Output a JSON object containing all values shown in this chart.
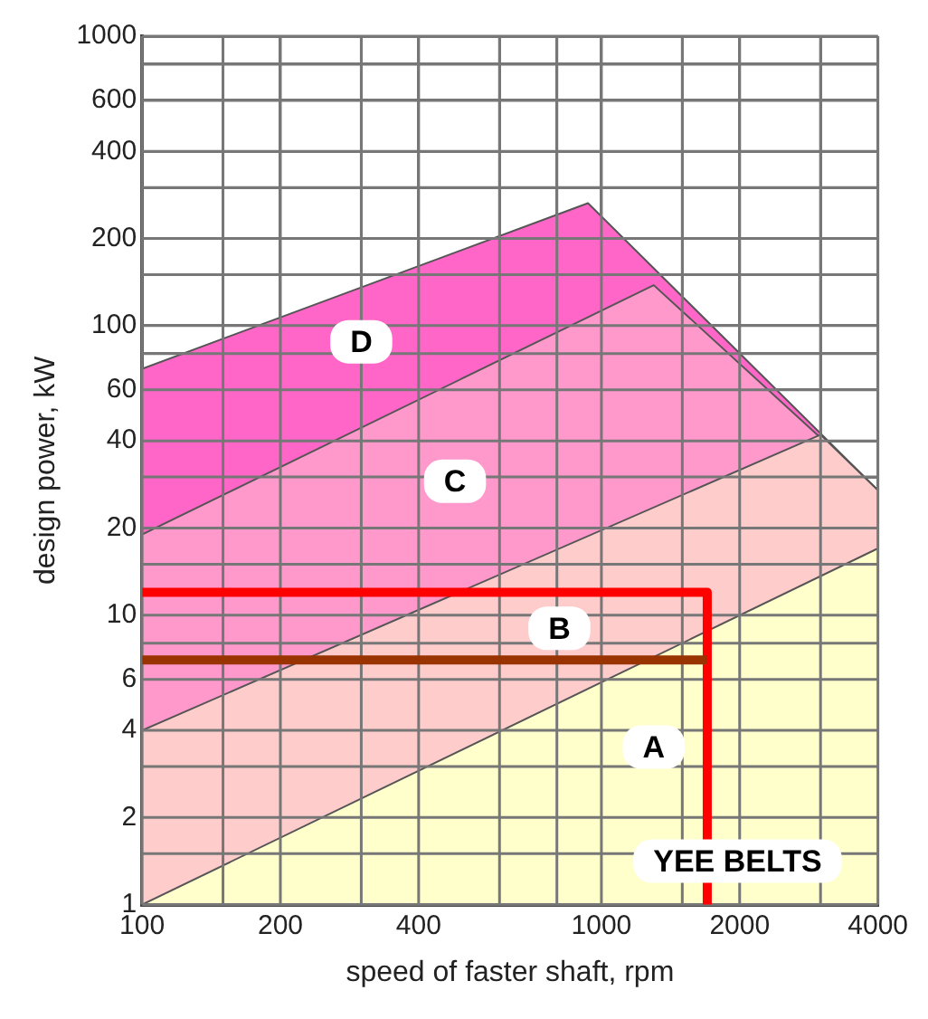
{
  "chart_data": {
    "type": "area",
    "xlabel": "speed of faster shaft, rpm",
    "ylabel": "design power, kW",
    "log": "xy",
    "grid": true,
    "legend": false,
    "marker": "none",
    "xlim": [
      100,
      4000
    ],
    "ylim": [
      1,
      1000
    ],
    "xticks": [
      100,
      {
        "value": 150,
        "label": null
      },
      200,
      {
        "value": 300,
        "label": null
      },
      400,
      {
        "value": 600,
        "label": null
      },
      {
        "value": 800,
        "label": null
      },
      1000,
      {
        "value": 1500,
        "label": null
      },
      2000,
      {
        "value": 3000,
        "label": null
      },
      4000
    ],
    "yticks": [
      1,
      {
        "value": 1.5,
        "label": null
      },
      2,
      {
        "value": 3,
        "label": null
      },
      4,
      6,
      {
        "value": 8,
        "label": null
      },
      10,
      {
        "value": 15,
        "label": null
      },
      20,
      {
        "value": 30,
        "label": null
      },
      40,
      60,
      {
        "value": 80,
        "label": null
      },
      100,
      {
        "value": 150,
        "label": null
      },
      200,
      {
        "value": 300,
        "label": null
      },
      400,
      600,
      {
        "value": 800,
        "label": null
      },
      1000
    ],
    "series": [
      {
        "color": "#ff66c8",
        "x": [
          100,
          935,
          4000
        ],
        "values": [
          71,
          265,
          27
        ]
      },
      {
        "color": "#ff99cc",
        "x": [
          100,
          1300,
          4000
        ],
        "values": [
          19,
          138,
          27
        ]
      },
      {
        "color": "#ffcccc",
        "x": [
          100,
          3000,
          4000
        ],
        "values": [
          4,
          42,
          27
        ]
      },
      {
        "color": "#ffffcc",
        "x": [
          100,
          4000
        ],
        "values": [
          1,
          17
        ]
      },
      {
        "type": "line",
        "color": "#ff0000",
        "x": [
          100,
          1700,
          1700
        ],
        "values": [
          12,
          12,
          1
        ]
      },
      {
        "type": "line",
        "color": "#993300",
        "x": [
          100,
          1700
        ],
        "values": [
          7,
          7
        ]
      }
    ],
    "annotations": [
      {
        "text": "D",
        "x": 300,
        "y": 88
      },
      {
        "text": "C",
        "x": 480,
        "y": 29
      },
      {
        "text": "B",
        "x": 810,
        "y": 9
      },
      {
        "text": "A",
        "x": 1300,
        "y": 3.5
      },
      "YEE BELTS"
    ]
  }
}
